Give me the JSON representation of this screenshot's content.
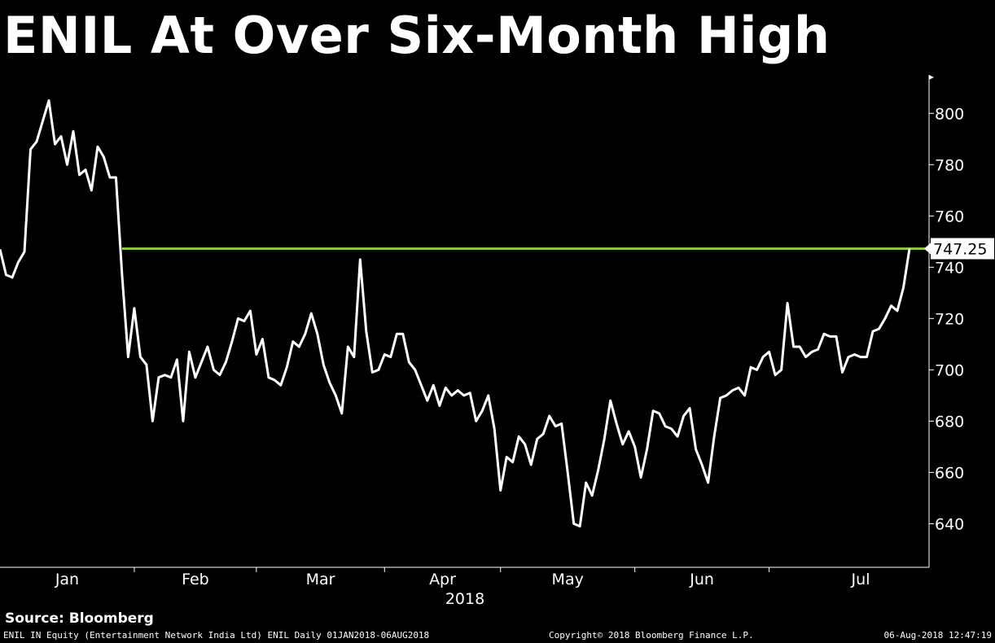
{
  "title": "ENIL At Over Six-Month High",
  "source": "Source: Bloomberg",
  "footer": {
    "left": "ENIL IN Equity (Entertainment Network India Ltd) ENIL  Daily 01JAN2018-06AUG2018",
    "center": "Copyright© 2018 Bloomberg Finance L.P.",
    "right": "06-Aug-2018 12:47:19"
  },
  "colors": {
    "background": "#000000",
    "line": "#ffffff",
    "threshold": "#8cc63f"
  },
  "chart_data": {
    "type": "line",
    "xlabel": "2018",
    "ylim": [
      623,
      815
    ],
    "yticks": [
      640,
      660,
      680,
      700,
      720,
      740,
      760,
      780,
      800
    ],
    "ytick_labels": [
      "640",
      "660",
      "680",
      "700",
      "720",
      "740",
      "760",
      "780",
      "800"
    ],
    "months": [
      "Jan",
      "Feb",
      "Mar",
      "Apr",
      "May",
      "Jun",
      "Jul"
    ],
    "last_value_label": "747.25",
    "threshold": 747.25,
    "series": [
      {
        "values": [
          747,
          737,
          736,
          742,
          746,
          786,
          789,
          797,
          805,
          788,
          791,
          780,
          793,
          776,
          778,
          770,
          787,
          783,
          775,
          775,
          737,
          705,
          724,
          705,
          702,
          680,
          697,
          698,
          697,
          704,
          680,
          707,
          697,
          703,
          709,
          700,
          698,
          703,
          711,
          720,
          719,
          723,
          706,
          712,
          697,
          696,
          694,
          701,
          711,
          709,
          714,
          722,
          714,
          702,
          695,
          690,
          683,
          709,
          705,
          743,
          715,
          699,
          700,
          706,
          705,
          714,
          714,
          703,
          700,
          694,
          688,
          694,
          686,
          693,
          690,
          692,
          690,
          691,
          680,
          684,
          690,
          677,
          653,
          666,
          664,
          674,
          671,
          663,
          673,
          675,
          682,
          678,
          679,
          660,
          640,
          639,
          656,
          651,
          661,
          673,
          688,
          679,
          671,
          676,
          670,
          658,
          669,
          684,
          683,
          678,
          677,
          674,
          682,
          685,
          669,
          663,
          656,
          674,
          689,
          690,
          692,
          693,
          690,
          701,
          700,
          705,
          707,
          698,
          700,
          726,
          709,
          709,
          705,
          707,
          708,
          714,
          713,
          713,
          699,
          705,
          706,
          705,
          705,
          715,
          716,
          720,
          725,
          723,
          732,
          747.25
        ]
      }
    ]
  }
}
